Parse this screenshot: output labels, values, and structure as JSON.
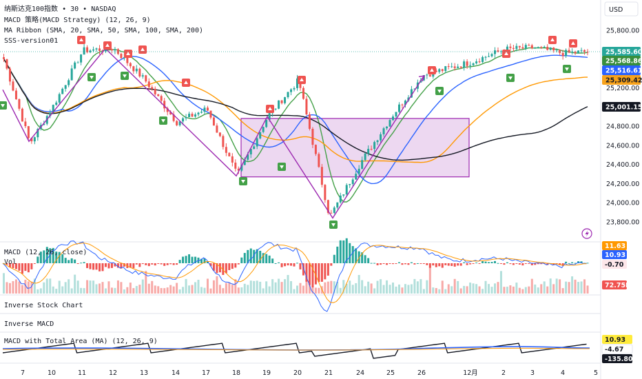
{
  "header": {
    "title": "纳斯达克100指数 • 30 • NASDAQ",
    "indicators": [
      "MACD 策略(MACD Strategy) (12, 26, 9)",
      "MA Ribbon (SMA, 20, SMA, 50, SMA, 100, SMA, 200)",
      "SSS-version01"
    ],
    "currency": "USD"
  },
  "panes": {
    "macd_title": "MACD (12, 26, close)",
    "vol_title": "Vol",
    "inverse_stock": "Inverse Stock Chart",
    "inverse_macd": "Inverse MACD",
    "macd_total": "MACD with Total Area (MA) (12, 26, 9)"
  },
  "price_tags": [
    {
      "text": "25,585.60",
      "bg": "#26a69a",
      "fg": "#ffffff"
    },
    {
      "text": "25,568.86",
      "bg": "#388e3c",
      "fg": "#ffffff"
    },
    {
      "text": "25,516.61",
      "bg": "#2962ff",
      "fg": "#ffffff"
    },
    {
      "text": "25,309.42",
      "bg": "#f7a21b",
      "fg": "#131722"
    },
    {
      "text": "25,001.15",
      "bg": "#131722",
      "fg": "#ffffff"
    }
  ],
  "macd_tags": [
    {
      "text": "11.63",
      "bg": "#ff9800",
      "fg": "#ffffff"
    },
    {
      "text": "10.93",
      "bg": "#2962ff",
      "fg": "#ffffff"
    },
    {
      "text": "-0.70",
      "bg": "#fde7ea",
      "fg": "#131722"
    },
    {
      "text": "72.75M",
      "bg": "#f05350",
      "fg": "#ffffff"
    }
  ],
  "macd2_tags": [
    {
      "text": "10.93",
      "bg": "#ffeb3b",
      "fg": "#131722"
    },
    {
      "text": "-4.67",
      "bg": "#ffffff",
      "fg": "#131722"
    },
    {
      "text": "-135.80",
      "bg": "#131722",
      "fg": "#ffffff"
    }
  ],
  "colors": {
    "up": "#26a69a",
    "down": "#ef5350",
    "sma20": "#43a047",
    "sma50": "#2962ff",
    "sma100": "#ff9800",
    "sma200": "#131722",
    "zigzag": "#9c27b0",
    "box_fill": "#e1bee7",
    "buy": "#43a047",
    "sell": "#ef5350"
  },
  "chart_data": [
    {
      "type": "candlestick",
      "y_axis_ticks": [
        "25,800.00",
        "25,600.00",
        "25,400.00",
        "25,200.00",
        "25,000.00",
        "24,800.00",
        "24,600.00",
        "24,400.00",
        "24,200.00",
        "24,000.00",
        "23,800.00"
      ],
      "y_axis_values": [
        25800,
        25600,
        25400,
        25200,
        25000,
        24800,
        24600,
        24400,
        24200,
        24000,
        23800
      ],
      "x_axis_labels": [
        "7",
        "10",
        "11",
        "12",
        "13",
        "14",
        "17",
        "18",
        "19",
        "20",
        "21",
        "24",
        "25",
        "26",
        "12月",
        "2",
        "3",
        "4",
        "5"
      ],
      "ylim": [
        23700,
        25950
      ],
      "grid": false,
      "key_points": [
        {
          "date": "7",
          "price": 25500
        },
        {
          "date": "7",
          "price": 24620
        },
        {
          "date": "10",
          "price": 25000
        },
        {
          "date": "11",
          "price": 25590
        },
        {
          "date": "12",
          "price": 25610
        },
        {
          "date": "13",
          "price": 25280
        },
        {
          "date": "14",
          "price": 24840
        },
        {
          "date": "17",
          "price": 24980
        },
        {
          "date": "18",
          "price": 24280
        },
        {
          "date": "19",
          "price": 24900
        },
        {
          "date": "20",
          "price": 25280
        },
        {
          "date": "21",
          "price": 23850
        },
        {
          "date": "24",
          "price": 24430
        },
        {
          "date": "25",
          "price": 24900
        },
        {
          "date": "26",
          "price": 25330
        },
        {
          "date": "12月",
          "price": 25470
        },
        {
          "date": "2",
          "price": 25600
        },
        {
          "date": "3",
          "price": 25620
        },
        {
          "date": "4",
          "price": 25560
        },
        {
          "date": "5",
          "price": 25585.6
        }
      ],
      "series": [
        {
          "name": "SMA 20",
          "last": 25568.86
        },
        {
          "name": "SMA 50",
          "last": 25516.61
        },
        {
          "name": "SMA 100",
          "last": 25309.42
        },
        {
          "name": "SMA 200",
          "last": 25001.15
        }
      ],
      "box": {
        "price_top": 24880,
        "price_bottom": 24270
      },
      "signals": [
        {
          "type": "sell",
          "date": "11"
        },
        {
          "type": "sell",
          "date": "12"
        },
        {
          "type": "sell",
          "date": "12"
        },
        {
          "type": "sell",
          "date": "13"
        },
        {
          "type": "sell",
          "date": "14"
        },
        {
          "type": "sell",
          "date": "19"
        },
        {
          "type": "sell",
          "date": "20"
        },
        {
          "type": "sell",
          "date": "26"
        },
        {
          "type": "sell",
          "date": "2"
        },
        {
          "type": "sell",
          "date": "3"
        },
        {
          "type": "sell",
          "date": "4"
        },
        {
          "type": "buy",
          "date": "7"
        },
        {
          "type": "buy",
          "date": "11"
        },
        {
          "type": "buy",
          "date": "12"
        },
        {
          "type": "buy",
          "date": "14"
        },
        {
          "type": "buy",
          "date": "18"
        },
        {
          "type": "buy",
          "date": "19"
        },
        {
          "type": "buy",
          "date": "21"
        },
        {
          "type": "buy",
          "date": "26"
        },
        {
          "type": "buy",
          "date": "2"
        },
        {
          "type": "buy",
          "date": "4"
        }
      ]
    },
    {
      "type": "line",
      "title": "MACD (12, 26, close)",
      "series": [
        {
          "name": "MACD",
          "last": 10.93
        },
        {
          "name": "Signal",
          "last": 11.63
        },
        {
          "name": "Histogram",
          "last": -0.7
        }
      ],
      "volume_last": "72.75M"
    },
    {
      "type": "line",
      "title": "MACD with Total Area (MA) (12, 26, 9)",
      "values_last": [
        10.93,
        -4.67,
        -135.8
      ]
    }
  ]
}
